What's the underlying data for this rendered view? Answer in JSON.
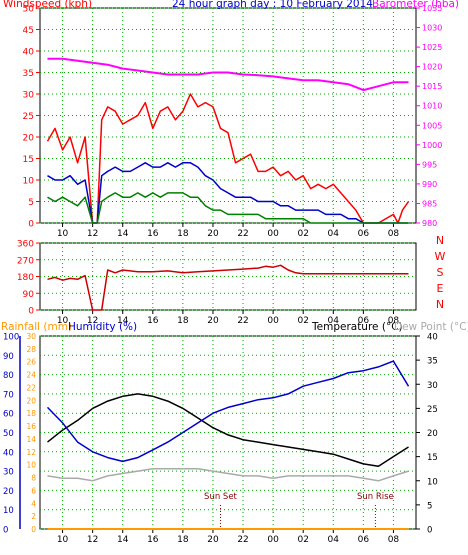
{
  "chart_data": [
    {
      "type": "line",
      "title": "24 hour graph day : 10 February 2014",
      "left_axis_label": "Windspeed (kph)",
      "right_axis_label": "Barometer (hba)",
      "left_ticks": [
        0,
        5,
        10,
        15,
        20,
        25,
        30,
        35,
        40,
        45,
        50
      ],
      "right_ticks": [
        980,
        985,
        990,
        995,
        1000,
        1005,
        1010,
        1015,
        1020,
        1025,
        1030,
        1035
      ],
      "ylim_left": [
        0,
        50
      ],
      "ylim_right": [
        980,
        1035
      ],
      "x_ticks": [
        "10",
        "12",
        "14",
        "16",
        "18",
        "20",
        "22",
        "00",
        "02",
        "04",
        "06",
        "08"
      ],
      "x_hours": [
        10,
        12,
        14,
        16,
        18,
        20,
        22,
        24,
        26,
        28,
        30,
        32
      ],
      "xlim": [
        8.5,
        33.5
      ],
      "colors": {
        "gust": "#ff0000",
        "avg_wind": "#0000cc",
        "lull": "#008000",
        "barometer": "#ff00ff",
        "left_axis": "#ff0000",
        "right_axis": "#ff00ff"
      },
      "series": [
        {
          "key": "barometer",
          "axis": "right",
          "x": [
            9.0,
            10.0,
            11.0,
            12.0,
            13.0,
            14.0,
            15.0,
            16.0,
            17.0,
            18.0,
            19.0,
            20.0,
            21.0,
            22.0,
            23.0,
            24.0,
            25.0,
            26.0,
            27.0,
            28.0,
            29.0,
            30.0,
            31.0,
            32.0,
            33.0
          ],
          "values": [
            1022,
            1022,
            1021.5,
            1021,
            1020.5,
            1019.5,
            1019,
            1018.5,
            1018,
            1018,
            1018,
            1018.5,
            1018.5,
            1018,
            1017.8,
            1017.5,
            1017,
            1016.5,
            1016.5,
            1016,
            1015.5,
            1014,
            1015,
            1016,
            1016
          ]
        },
        {
          "key": "gust",
          "axis": "left",
          "x": [
            9.0,
            9.5,
            10.0,
            10.5,
            11.0,
            11.5,
            12.0,
            12.3,
            12.6,
            13.0,
            13.5,
            14.0,
            14.5,
            15.0,
            15.5,
            16.0,
            16.5,
            17.0,
            17.5,
            18.0,
            18.5,
            19.0,
            19.5,
            20.0,
            20.5,
            21.0,
            21.5,
            22.0,
            22.5,
            23.0,
            23.5,
            24.0,
            24.5,
            25.0,
            25.5,
            26.0,
            26.5,
            27.0,
            27.5,
            28.0,
            28.5,
            29.0,
            29.5,
            30.0,
            31.0,
            32.0,
            32.3,
            32.6,
            33.0
          ],
          "values": [
            19,
            22,
            17,
            20,
            14,
            20,
            0,
            0,
            24,
            27,
            26,
            23,
            24,
            25,
            28,
            22,
            26,
            27,
            24,
            26,
            30,
            27,
            28,
            27,
            22,
            21,
            14,
            15,
            16,
            12,
            12,
            13,
            11,
            12,
            10,
            11,
            8,
            9,
            8,
            9,
            7,
            5,
            3,
            0,
            0,
            2,
            0,
            3,
            5
          ]
        },
        {
          "key": "avg_wind",
          "axis": "left",
          "x": [
            9.0,
            9.5,
            10.0,
            10.5,
            11.0,
            11.5,
            12.0,
            12.3,
            12.6,
            13.0,
            13.5,
            14.0,
            14.5,
            15.0,
            15.5,
            16.0,
            16.5,
            17.0,
            17.5,
            18.0,
            18.5,
            19.0,
            19.5,
            20.0,
            20.5,
            21.0,
            21.5,
            22.0,
            22.5,
            23.0,
            23.5,
            24.0,
            24.5,
            25.0,
            25.5,
            26.0,
            26.5,
            27.0,
            27.5,
            28.0,
            28.5,
            29.0,
            29.5,
            30.0,
            31.0,
            32.0,
            33.0
          ],
          "values": [
            11,
            10,
            10,
            11,
            9,
            10,
            0,
            0,
            11,
            12,
            13,
            12,
            12,
            13,
            14,
            13,
            13,
            14,
            13,
            14,
            14,
            13,
            11,
            10,
            8,
            7,
            6,
            6,
            6,
            5,
            5,
            5,
            4,
            4,
            3,
            3,
            3,
            3,
            2,
            2,
            2,
            1,
            1,
            0,
            0,
            0,
            0
          ]
        },
        {
          "key": "lull",
          "axis": "left",
          "x": [
            9.0,
            9.5,
            10.0,
            10.5,
            11.0,
            11.5,
            12.0,
            12.3,
            12.6,
            13.0,
            13.5,
            14.0,
            14.5,
            15.0,
            15.5,
            16.0,
            16.5,
            17.0,
            17.5,
            18.0,
            18.5,
            19.0,
            19.5,
            20.0,
            20.5,
            21.0,
            21.5,
            22.0,
            22.5,
            23.0,
            23.5,
            24.0,
            24.5,
            25.0,
            25.5,
            26.0,
            26.5,
            27.0,
            27.5,
            28.0,
            28.5,
            29.0,
            30.0,
            31.0,
            32.0,
            33.0
          ],
          "values": [
            6,
            5,
            6,
            5,
            4,
            6,
            0,
            0,
            5,
            6,
            7,
            6,
            6,
            7,
            6,
            7,
            6,
            7,
            7,
            7,
            6,
            6,
            4,
            3,
            3,
            2,
            2,
            2,
            2,
            2,
            1,
            1,
            1,
            1,
            1,
            1,
            0,
            0,
            0,
            0,
            0,
            0,
            0,
            0,
            0,
            0
          ]
        }
      ]
    },
    {
      "type": "line",
      "series_name": "Wind Direction",
      "left_ticks": [
        0,
        90,
        180,
        270,
        360
      ],
      "compass_labels": [
        "N",
        "W",
        "S",
        "E",
        "N"
      ],
      "ylim": [
        0,
        360
      ],
      "x_ticks": [
        "10",
        "12",
        "14",
        "16",
        "18",
        "20",
        "22",
        "00",
        "02",
        "04",
        "06",
        "08"
      ],
      "x_hours": [
        10,
        12,
        14,
        16,
        18,
        20,
        22,
        24,
        26,
        28,
        30,
        32
      ],
      "xlim": [
        8.5,
        33.5
      ],
      "colors": {
        "direction": "#cc0000",
        "axis_labels": "#ff0000"
      },
      "series": [
        {
          "key": "direction",
          "x": [
            9.0,
            9.5,
            10.0,
            10.5,
            11.0,
            11.5,
            12.0,
            12.3,
            12.6,
            13.0,
            13.5,
            14.0,
            14.5,
            15.0,
            16.0,
            17.0,
            18.0,
            19.0,
            20.0,
            21.0,
            22.0,
            23.0,
            23.5,
            24.0,
            24.5,
            25.0,
            25.5,
            26.0,
            27.0,
            28.0,
            29.0,
            30.0,
            31.0,
            32.0,
            33.0
          ],
          "values": [
            165,
            175,
            160,
            170,
            165,
            185,
            0,
            0,
            0,
            215,
            200,
            215,
            210,
            205,
            205,
            210,
            200,
            205,
            210,
            215,
            220,
            225,
            235,
            230,
            240,
            215,
            200,
            195,
            195,
            195,
            195,
            195,
            195,
            195,
            195
          ]
        }
      ]
    },
    {
      "type": "line",
      "title_left_1": "Rainfall (mm)",
      "title_left_2": "Humidity (%)",
      "title_right_1": "Temperature (°C)",
      "title_right_2": "Dew Point (°C)",
      "humidity_ticks": [
        0,
        10,
        20,
        30,
        40,
        50,
        60,
        70,
        80,
        90,
        100
      ],
      "rain_ticks": [
        0,
        2,
        4,
        6,
        8,
        10,
        12,
        14,
        16,
        18,
        20,
        22,
        24,
        26,
        28,
        30
      ],
      "temp_ticks": [
        0,
        5,
        10,
        15,
        20,
        25,
        30,
        35,
        40
      ],
      "ylim_humidity": [
        0,
        100
      ],
      "ylim_rain": [
        0,
        30
      ],
      "ylim_temp": [
        0,
        40
      ],
      "x_ticks": [
        "10",
        "12",
        "14",
        "16",
        "18",
        "20",
        "22",
        "00",
        "02",
        "04",
        "06",
        "08"
      ],
      "x_hours": [
        10,
        12,
        14,
        16,
        18,
        20,
        22,
        24,
        26,
        28,
        30,
        32
      ],
      "xlim": [
        8.5,
        33.5
      ],
      "annotations": [
        {
          "text": "Sun Set",
          "hour": 20.5
        },
        {
          "text": "Sun Rise",
          "hour": 30.8
        }
      ],
      "colors": {
        "temperature": "#000000",
        "humidity": "#0000cc",
        "dew_point": "#aaaaaa",
        "rainfall": "#ff9900",
        "humidity_axis": "#0000cc",
        "rain_axis": "#ff9900",
        "temp_axis": "#000000",
        "dew_axis": "#aaaaaa",
        "annotation": "#880000"
      },
      "series": [
        {
          "key": "temperature",
          "axis": "temp",
          "x": [
            9.0,
            10.0,
            11.0,
            12.0,
            13.0,
            14.0,
            15.0,
            16.0,
            17.0,
            18.0,
            19.0,
            20.0,
            21.0,
            22.0,
            23.0,
            24.0,
            25.0,
            26.0,
            27.0,
            28.0,
            29.0,
            30.0,
            31.0,
            32.0,
            33.0
          ],
          "values": [
            18,
            20.5,
            22.5,
            25,
            26.5,
            27.5,
            28,
            27.5,
            26.5,
            25,
            23,
            21,
            19.5,
            18.5,
            18,
            17.5,
            17,
            16.5,
            16,
            15.5,
            14.5,
            13.5,
            13,
            15,
            17
          ]
        },
        {
          "key": "humidity",
          "axis": "humidity",
          "x": [
            9.0,
            10.0,
            11.0,
            12.0,
            13.0,
            14.0,
            15.0,
            16.0,
            17.0,
            18.0,
            19.0,
            20.0,
            21.0,
            22.0,
            23.0,
            24.0,
            25.0,
            26.0,
            27.0,
            28.0,
            29.0,
            30.0,
            31.0,
            32.0,
            33.0
          ],
          "values": [
            63,
            55,
            45,
            40,
            37,
            35,
            37,
            41,
            45,
            50,
            55,
            60,
            63,
            65,
            67,
            68,
            70,
            74,
            76,
            78,
            81,
            82,
            84,
            87,
            74
          ]
        },
        {
          "key": "dew_point",
          "axis": "temp",
          "x": [
            9.0,
            10.0,
            11.0,
            12.0,
            13.0,
            14.0,
            15.0,
            16.0,
            17.0,
            18.0,
            19.0,
            20.0,
            21.0,
            22.0,
            23.0,
            24.0,
            25.0,
            26.0,
            27.0,
            28.0,
            29.0,
            30.0,
            31.0,
            32.0,
            33.0
          ],
          "values": [
            11,
            10.5,
            10.5,
            10,
            11,
            11.5,
            12,
            12.5,
            12.5,
            12.5,
            12.5,
            12,
            11.5,
            11,
            11,
            10.5,
            11,
            11,
            11,
            11,
            11,
            10.5,
            10,
            11,
            12
          ]
        },
        {
          "key": "rainfall",
          "axis": "rain",
          "x": [
            9.0,
            33.0
          ],
          "values": [
            0,
            0
          ]
        }
      ]
    }
  ]
}
